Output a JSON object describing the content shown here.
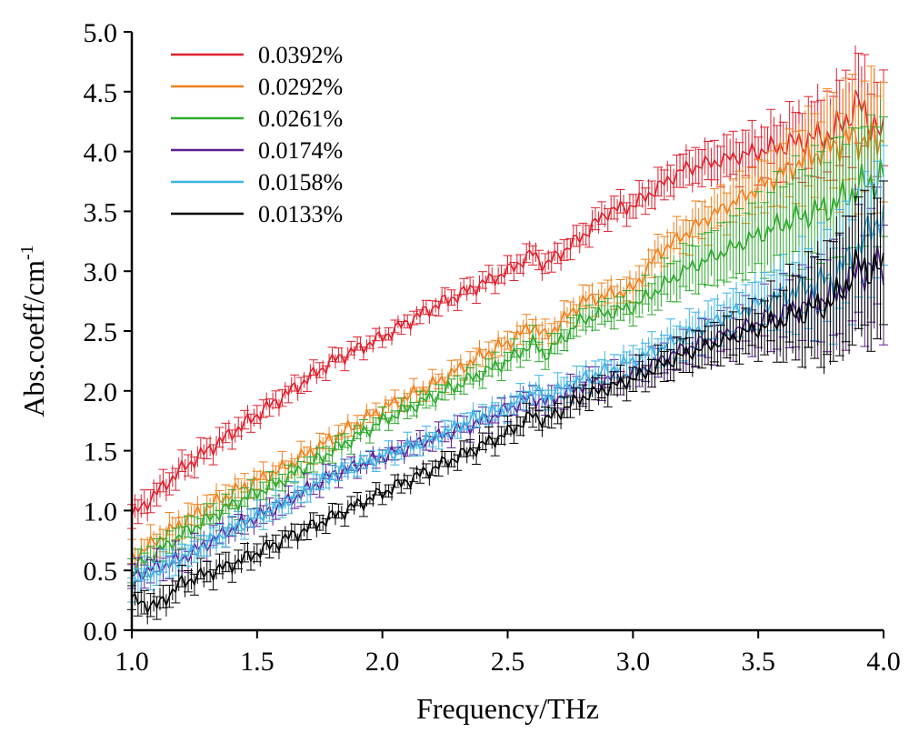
{
  "chart_data": {
    "type": "line",
    "xlabel": "Frequency/THz",
    "ylabel_main": "Abs.coeff/cm",
    "ylabel_sup": "-1",
    "xlim": [
      1.0,
      4.0
    ],
    "ylim": [
      0.0,
      5.0
    ],
    "xticks": [
      "1.0",
      "1.5",
      "2.0",
      "2.5",
      "3.0",
      "3.5",
      "4.0"
    ],
    "yticks": [
      "0.0",
      "0.5",
      "1.0",
      "1.5",
      "2.0",
      "2.5",
      "3.0",
      "3.5",
      "4.0",
      "4.5",
      "5.0"
    ],
    "grid": false,
    "legend_position": "top-left",
    "error_bars": true,
    "series": [
      {
        "name": "0.0392%",
        "color": "#e0202e",
        "points": [
          [
            1.0,
            0.95
          ],
          [
            1.2,
            1.35
          ],
          [
            1.4,
            1.65
          ],
          [
            1.6,
            1.95
          ],
          [
            1.8,
            2.25
          ],
          [
            2.0,
            2.45
          ],
          [
            2.2,
            2.7
          ],
          [
            2.4,
            2.9
          ],
          [
            2.5,
            3.0
          ],
          [
            2.6,
            3.15
          ],
          [
            2.65,
            3.05
          ],
          [
            2.8,
            3.3
          ],
          [
            2.9,
            3.5
          ],
          [
            3.0,
            3.55
          ],
          [
            3.2,
            3.85
          ],
          [
            3.4,
            3.95
          ],
          [
            3.6,
            4.05
          ],
          [
            3.8,
            4.15
          ],
          [
            3.9,
            4.4
          ],
          [
            4.0,
            4.1
          ]
        ],
        "err": [
          [
            1.0,
            0.1
          ],
          [
            2.0,
            0.05
          ],
          [
            3.0,
            0.1
          ],
          [
            3.5,
            0.2
          ],
          [
            3.8,
            0.35
          ],
          [
            4.0,
            0.4
          ]
        ]
      },
      {
        "name": "0.0292%",
        "color": "#f0821e",
        "points": [
          [
            1.0,
            0.6
          ],
          [
            1.2,
            0.9
          ],
          [
            1.4,
            1.15
          ],
          [
            1.6,
            1.35
          ],
          [
            1.8,
            1.6
          ],
          [
            2.0,
            1.85
          ],
          [
            2.2,
            2.05
          ],
          [
            2.4,
            2.3
          ],
          [
            2.5,
            2.4
          ],
          [
            2.6,
            2.55
          ],
          [
            2.65,
            2.45
          ],
          [
            2.8,
            2.75
          ],
          [
            3.0,
            2.85
          ],
          [
            3.1,
            3.15
          ],
          [
            3.3,
            3.45
          ],
          [
            3.5,
            3.7
          ],
          [
            3.7,
            3.95
          ],
          [
            3.85,
            4.1
          ],
          [
            4.0,
            4.1
          ]
        ],
        "err": [
          [
            1.0,
            0.1
          ],
          [
            2.0,
            0.05
          ],
          [
            3.0,
            0.1
          ],
          [
            3.5,
            0.2
          ],
          [
            3.8,
            0.4
          ],
          [
            4.0,
            0.5
          ]
        ]
      },
      {
        "name": "0.0261%",
        "color": "#2eaa2e",
        "points": [
          [
            1.0,
            0.5
          ],
          [
            1.2,
            0.8
          ],
          [
            1.4,
            1.05
          ],
          [
            1.6,
            1.25
          ],
          [
            1.8,
            1.5
          ],
          [
            2.0,
            1.75
          ],
          [
            2.2,
            1.95
          ],
          [
            2.4,
            2.15
          ],
          [
            2.5,
            2.25
          ],
          [
            2.6,
            2.4
          ],
          [
            2.65,
            2.3
          ],
          [
            2.8,
            2.6
          ],
          [
            3.0,
            2.7
          ],
          [
            3.2,
            3.0
          ],
          [
            3.4,
            3.2
          ],
          [
            3.6,
            3.4
          ],
          [
            3.8,
            3.55
          ],
          [
            3.9,
            3.7
          ],
          [
            4.0,
            3.8
          ]
        ],
        "err": [
          [
            1.0,
            0.1
          ],
          [
            2.0,
            0.05
          ],
          [
            3.0,
            0.1
          ],
          [
            3.5,
            0.3
          ],
          [
            3.8,
            0.5
          ],
          [
            4.0,
            0.5
          ]
        ]
      },
      {
        "name": "0.0174%",
        "color": "#5a1e96",
        "points": [
          [
            1.0,
            0.45
          ],
          [
            1.2,
            0.6
          ],
          [
            1.4,
            0.85
          ],
          [
            1.6,
            1.05
          ],
          [
            1.8,
            1.3
          ],
          [
            2.0,
            1.45
          ],
          [
            2.2,
            1.6
          ],
          [
            2.4,
            1.75
          ],
          [
            2.5,
            1.85
          ],
          [
            2.6,
            1.95
          ],
          [
            2.65,
            1.9
          ],
          [
            2.8,
            2.05
          ],
          [
            3.0,
            2.15
          ],
          [
            3.2,
            2.35
          ],
          [
            3.4,
            2.5
          ],
          [
            3.6,
            2.65
          ],
          [
            3.8,
            2.8
          ],
          [
            3.9,
            3.0
          ],
          [
            4.0,
            3.05
          ]
        ],
        "err": [
          [
            1.0,
            0.1
          ],
          [
            2.0,
            0.05
          ],
          [
            3.0,
            0.1
          ],
          [
            3.5,
            0.2
          ],
          [
            3.8,
            0.4
          ],
          [
            4.0,
            0.5
          ]
        ]
      },
      {
        "name": "0.0158%",
        "color": "#3cb4e6",
        "points": [
          [
            1.0,
            0.4
          ],
          [
            1.2,
            0.6
          ],
          [
            1.4,
            0.85
          ],
          [
            1.6,
            1.05
          ],
          [
            1.8,
            1.3
          ],
          [
            2.0,
            1.45
          ],
          [
            2.2,
            1.6
          ],
          [
            2.4,
            1.8
          ],
          [
            2.5,
            1.85
          ],
          [
            2.6,
            2.0
          ],
          [
            2.65,
            1.95
          ],
          [
            2.8,
            2.1
          ],
          [
            3.0,
            2.25
          ],
          [
            3.2,
            2.45
          ],
          [
            3.4,
            2.65
          ],
          [
            3.6,
            2.8
          ],
          [
            3.8,
            2.95
          ],
          [
            3.9,
            3.2
          ],
          [
            4.0,
            3.5
          ]
        ],
        "err": [
          [
            1.0,
            0.1
          ],
          [
            2.0,
            0.05
          ],
          [
            3.0,
            0.1
          ],
          [
            3.5,
            0.2
          ],
          [
            3.8,
            0.4
          ],
          [
            4.0,
            0.5
          ]
        ]
      },
      {
        "name": "0.0133%",
        "color": "#000000",
        "points": [
          [
            1.0,
            0.25
          ],
          [
            1.1,
            0.2
          ],
          [
            1.2,
            0.4
          ],
          [
            1.4,
            0.55
          ],
          [
            1.6,
            0.75
          ],
          [
            1.8,
            0.95
          ],
          [
            2.0,
            1.15
          ],
          [
            2.2,
            1.35
          ],
          [
            2.4,
            1.55
          ],
          [
            2.5,
            1.65
          ],
          [
            2.6,
            1.8
          ],
          [
            2.65,
            1.75
          ],
          [
            2.8,
            1.95
          ],
          [
            3.0,
            2.1
          ],
          [
            3.2,
            2.3
          ],
          [
            3.4,
            2.45
          ],
          [
            3.6,
            2.6
          ],
          [
            3.8,
            2.75
          ],
          [
            3.9,
            3.05
          ],
          [
            4.0,
            3.0
          ]
        ],
        "err": [
          [
            1.0,
            0.1
          ],
          [
            2.0,
            0.05
          ],
          [
            3.0,
            0.1
          ],
          [
            3.5,
            0.2
          ],
          [
            3.8,
            0.5
          ],
          [
            4.0,
            0.6
          ]
        ]
      }
    ]
  }
}
